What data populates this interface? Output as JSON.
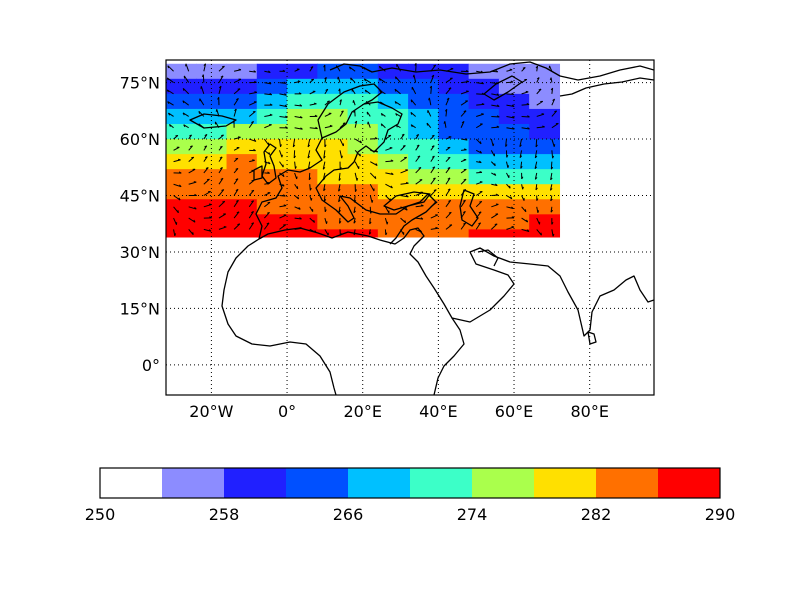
{
  "map": {
    "projection": "cylindrical",
    "lon_range": [
      -32,
      97
    ],
    "lat_range": [
      -8,
      81
    ],
    "gridlines": "dotted",
    "lon_ticks": [
      {
        "value": -20,
        "label": "20°W"
      },
      {
        "value": 0,
        "label": "0°"
      },
      {
        "value": 20,
        "label": "20°E"
      },
      {
        "value": 40,
        "label": "40°E"
      },
      {
        "value": 60,
        "label": "60°E"
      },
      {
        "value": 80,
        "label": "80°E"
      }
    ],
    "lat_ticks": [
      {
        "value": 75,
        "label": "75°N"
      },
      {
        "value": 60,
        "label": "60°N"
      },
      {
        "value": 45,
        "label": "45°N"
      },
      {
        "value": 30,
        "label": "30°N"
      },
      {
        "value": 15,
        "label": "15°N"
      },
      {
        "value": 0,
        "label": "0°"
      }
    ]
  },
  "field": {
    "type": "filled-contour",
    "data_extent": {
      "lon": [
        -32,
        72
      ],
      "lat": [
        34,
        80
      ]
    },
    "lon_nodes": [
      -32,
      -24,
      -16,
      -8,
      0,
      8,
      16,
      24,
      32,
      40,
      48,
      56,
      64,
      72
    ],
    "lat_nodes": [
      80,
      76,
      72,
      68,
      64,
      60,
      56,
      52,
      48,
      44,
      40,
      36,
      34
    ],
    "values": [
      [
        256,
        255,
        256,
        257,
        259,
        260,
        261,
        260,
        259,
        258,
        257,
        256,
        256,
        256
      ],
      [
        259,
        258,
        258,
        260,
        263,
        264,
        264,
        263,
        262,
        261,
        259,
        258,
        256,
        256
      ],
      [
        262,
        261,
        262,
        264,
        268,
        272,
        271,
        268,
        266,
        264,
        262,
        259,
        257,
        256
      ],
      [
        266,
        265,
        266,
        268,
        272,
        275,
        274,
        271,
        268,
        265,
        263,
        261,
        259,
        258
      ],
      [
        271,
        270,
        271,
        273,
        276,
        277,
        276,
        273,
        269,
        266,
        264,
        262,
        261,
        260
      ],
      [
        276,
        275,
        275,
        277,
        278,
        278,
        277,
        274,
        270,
        267,
        265,
        263,
        262,
        262
      ],
      [
        279,
        280,
        281,
        281,
        281,
        280,
        278,
        276,
        273,
        270,
        268,
        266,
        265,
        265
      ],
      [
        282,
        283,
        283,
        283,
        282,
        282,
        280,
        278,
        276,
        273,
        271,
        270,
        270,
        271
      ],
      [
        284,
        285,
        285,
        285,
        284,
        283,
        282,
        281,
        279,
        277,
        276,
        276,
        276,
        277
      ],
      [
        286,
        286,
        287,
        286,
        284,
        284,
        283,
        283,
        282,
        281,
        280,
        280,
        281,
        282
      ],
      [
        288,
        288,
        288,
        287,
        286,
        285,
        285,
        284,
        284,
        284,
        284,
        284,
        284,
        285
      ],
      [
        290,
        290,
        290,
        289,
        288,
        287,
        286,
        286,
        285,
        285,
        286,
        287,
        287,
        288
      ],
      [
        290,
        290,
        290,
        289,
        288,
        287,
        286,
        286,
        285,
        285,
        286,
        287,
        287,
        288
      ]
    ],
    "wind_vectors": "black arrows over the shaded field"
  },
  "colorbar": {
    "min": 250,
    "max": 290,
    "tick_labels": [
      "250",
      "258",
      "266",
      "274",
      "282",
      "290"
    ],
    "tick_values": [
      250,
      258,
      266,
      274,
      282,
      290
    ],
    "bins": [
      {
        "from": 250,
        "to": 254,
        "color": "#ffffff"
      },
      {
        "from": 254,
        "to": 258,
        "color": "#8c8cff"
      },
      {
        "from": 258,
        "to": 262,
        "color": "#2020ff"
      },
      {
        "from": 262,
        "to": 266,
        "color": "#0050ff"
      },
      {
        "from": 266,
        "to": 270,
        "color": "#00c0ff"
      },
      {
        "from": 270,
        "to": 274,
        "color": "#3cffc8"
      },
      {
        "from": 274,
        "to": 278,
        "color": "#aaff4c"
      },
      {
        "from": 278,
        "to": 282,
        "color": "#ffe000"
      },
      {
        "from": 282,
        "to": 286,
        "color": "#ff7000"
      },
      {
        "from": 286,
        "to": 290,
        "color": "#ff0000"
      }
    ]
  }
}
